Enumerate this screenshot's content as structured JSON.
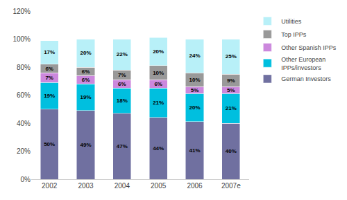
{
  "chart_data": {
    "type": "bar",
    "stacked": true,
    "categories": [
      "2002",
      "2003",
      "2004",
      "2005",
      "2006",
      "2007e"
    ],
    "series": [
      {
        "name": "German Investors",
        "color": "#7070a0",
        "values": [
          50,
          49,
          47,
          44,
          41,
          40
        ],
        "value_labels": [
          "50%",
          "49%",
          "47%",
          "44%",
          "41%",
          "40%"
        ]
      },
      {
        "name": "Other European\nIPPs/investors",
        "color": "#00bfdf",
        "values": [
          19,
          19,
          18,
          21,
          20,
          21
        ],
        "value_labels": [
          "19%",
          "19%",
          "18%",
          "21%",
          "20%",
          "21%"
        ]
      },
      {
        "name": "Other Spanish IPPs",
        "color": "#cc88dd",
        "values": [
          7,
          6,
          6,
          6,
          5,
          5
        ],
        "value_labels": [
          "7%",
          "6%",
          "6%",
          "6%",
          "5%",
          "5%"
        ]
      },
      {
        "name": "Top IPPs",
        "color": "#999999",
        "values": [
          6,
          6,
          7,
          10,
          10,
          9
        ],
        "value_labels": [
          "6%",
          "6%",
          "7%",
          "10%",
          "10%",
          "9%"
        ]
      },
      {
        "name": "Utilities",
        "color": "#b8f0f8",
        "values": [
          17,
          20,
          22,
          20,
          24,
          25
        ],
        "value_labels": [
          "17%",
          "20%",
          "22%",
          "20%",
          "24%",
          "25%"
        ]
      }
    ],
    "ylim": [
      0,
      120
    ],
    "yticks": [
      {
        "value": 0,
        "label": "0%"
      },
      {
        "value": 20,
        "label": "20%"
      },
      {
        "value": 40,
        "label": "40%"
      },
      {
        "value": 60,
        "label": "60%"
      },
      {
        "value": 80,
        "label": "80%"
      },
      {
        "value": 100,
        "label": "100%"
      },
      {
        "value": 120,
        "label": "120%"
      }
    ],
    "grid": false,
    "data_labels": true,
    "legend": "right"
  }
}
